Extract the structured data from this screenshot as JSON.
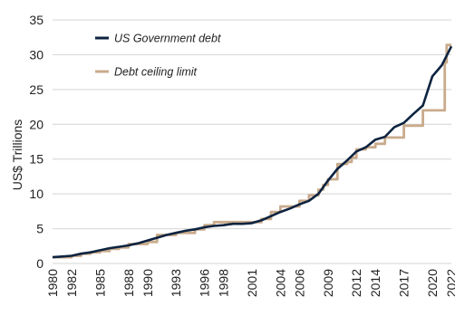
{
  "chart_data": {
    "type": "line",
    "title": "",
    "xlabel": "",
    "ylabel": "US$ Trillions",
    "ylim": [
      0,
      35
    ],
    "xlim": [
      1980,
      2022
    ],
    "y_ticks": [
      0,
      5,
      10,
      15,
      20,
      25,
      30,
      35
    ],
    "x_ticks": [
      "1980",
      "1982",
      "1985",
      "1988",
      "1990",
      "1993",
      "1996",
      "1998",
      "2001",
      "2004",
      "2006",
      "2009",
      "2012",
      "2014",
      "2017",
      "2020",
      "2022"
    ],
    "grid": "horizontal",
    "legend_position": "top-left",
    "series": [
      {
        "name": "US Government debt",
        "color": "#0d2340",
        "line_type": "smooth",
        "x": [
          1980,
          1981,
          1982,
          1983,
          1984,
          1985,
          1986,
          1987,
          1988,
          1989,
          1990,
          1991,
          1992,
          1993,
          1994,
          1995,
          1996,
          1997,
          1998,
          1999,
          2000,
          2001,
          2002,
          2003,
          2004,
          2005,
          2006,
          2007,
          2008,
          2009,
          2010,
          2011,
          2012,
          2013,
          2014,
          2015,
          2016,
          2017,
          2018,
          2019,
          2020,
          2020.5,
          2021,
          2022
        ],
        "values": [
          0.9,
          1.0,
          1.1,
          1.4,
          1.6,
          1.9,
          2.2,
          2.4,
          2.6,
          2.9,
          3.3,
          3.7,
          4.1,
          4.4,
          4.7,
          4.9,
          5.2,
          5.4,
          5.5,
          5.7,
          5.7,
          5.8,
          6.2,
          6.8,
          7.4,
          7.9,
          8.5,
          9.0,
          10.0,
          11.9,
          13.6,
          14.8,
          16.1,
          16.7,
          17.8,
          18.2,
          19.6,
          20.2,
          21.5,
          22.7,
          26.9,
          27.7,
          28.5,
          31.2
        ]
      },
      {
        "name": "Debt ceiling limit",
        "color": "#c9ab8c",
        "line_type": "step",
        "x": [
          1980,
          1982,
          1983,
          1984,
          1985,
          1986,
          1987,
          1988,
          1990,
          1991,
          1993,
          1995,
          1996,
          1997,
          2001,
          2002,
          2003,
          2004,
          2005,
          2006,
          2007,
          2008,
          2008.5,
          2009,
          2010,
          2011,
          2011.5,
          2012,
          2013,
          2014,
          2015,
          2016,
          2017,
          2019,
          2021.3,
          2021.5,
          2022
        ],
        "values": [
          0.9,
          1.1,
          1.4,
          1.6,
          1.8,
          2.1,
          2.3,
          2.8,
          3.1,
          4.1,
          4.4,
          4.9,
          5.5,
          5.95,
          5.95,
          6.4,
          7.4,
          8.2,
          8.2,
          9.0,
          9.8,
          10.6,
          11.3,
          12.1,
          14.3,
          14.6,
          15.2,
          16.4,
          16.7,
          17.2,
          18.1,
          18.1,
          19.8,
          22.0,
          28.9,
          31.4,
          31.4
        ]
      }
    ]
  }
}
